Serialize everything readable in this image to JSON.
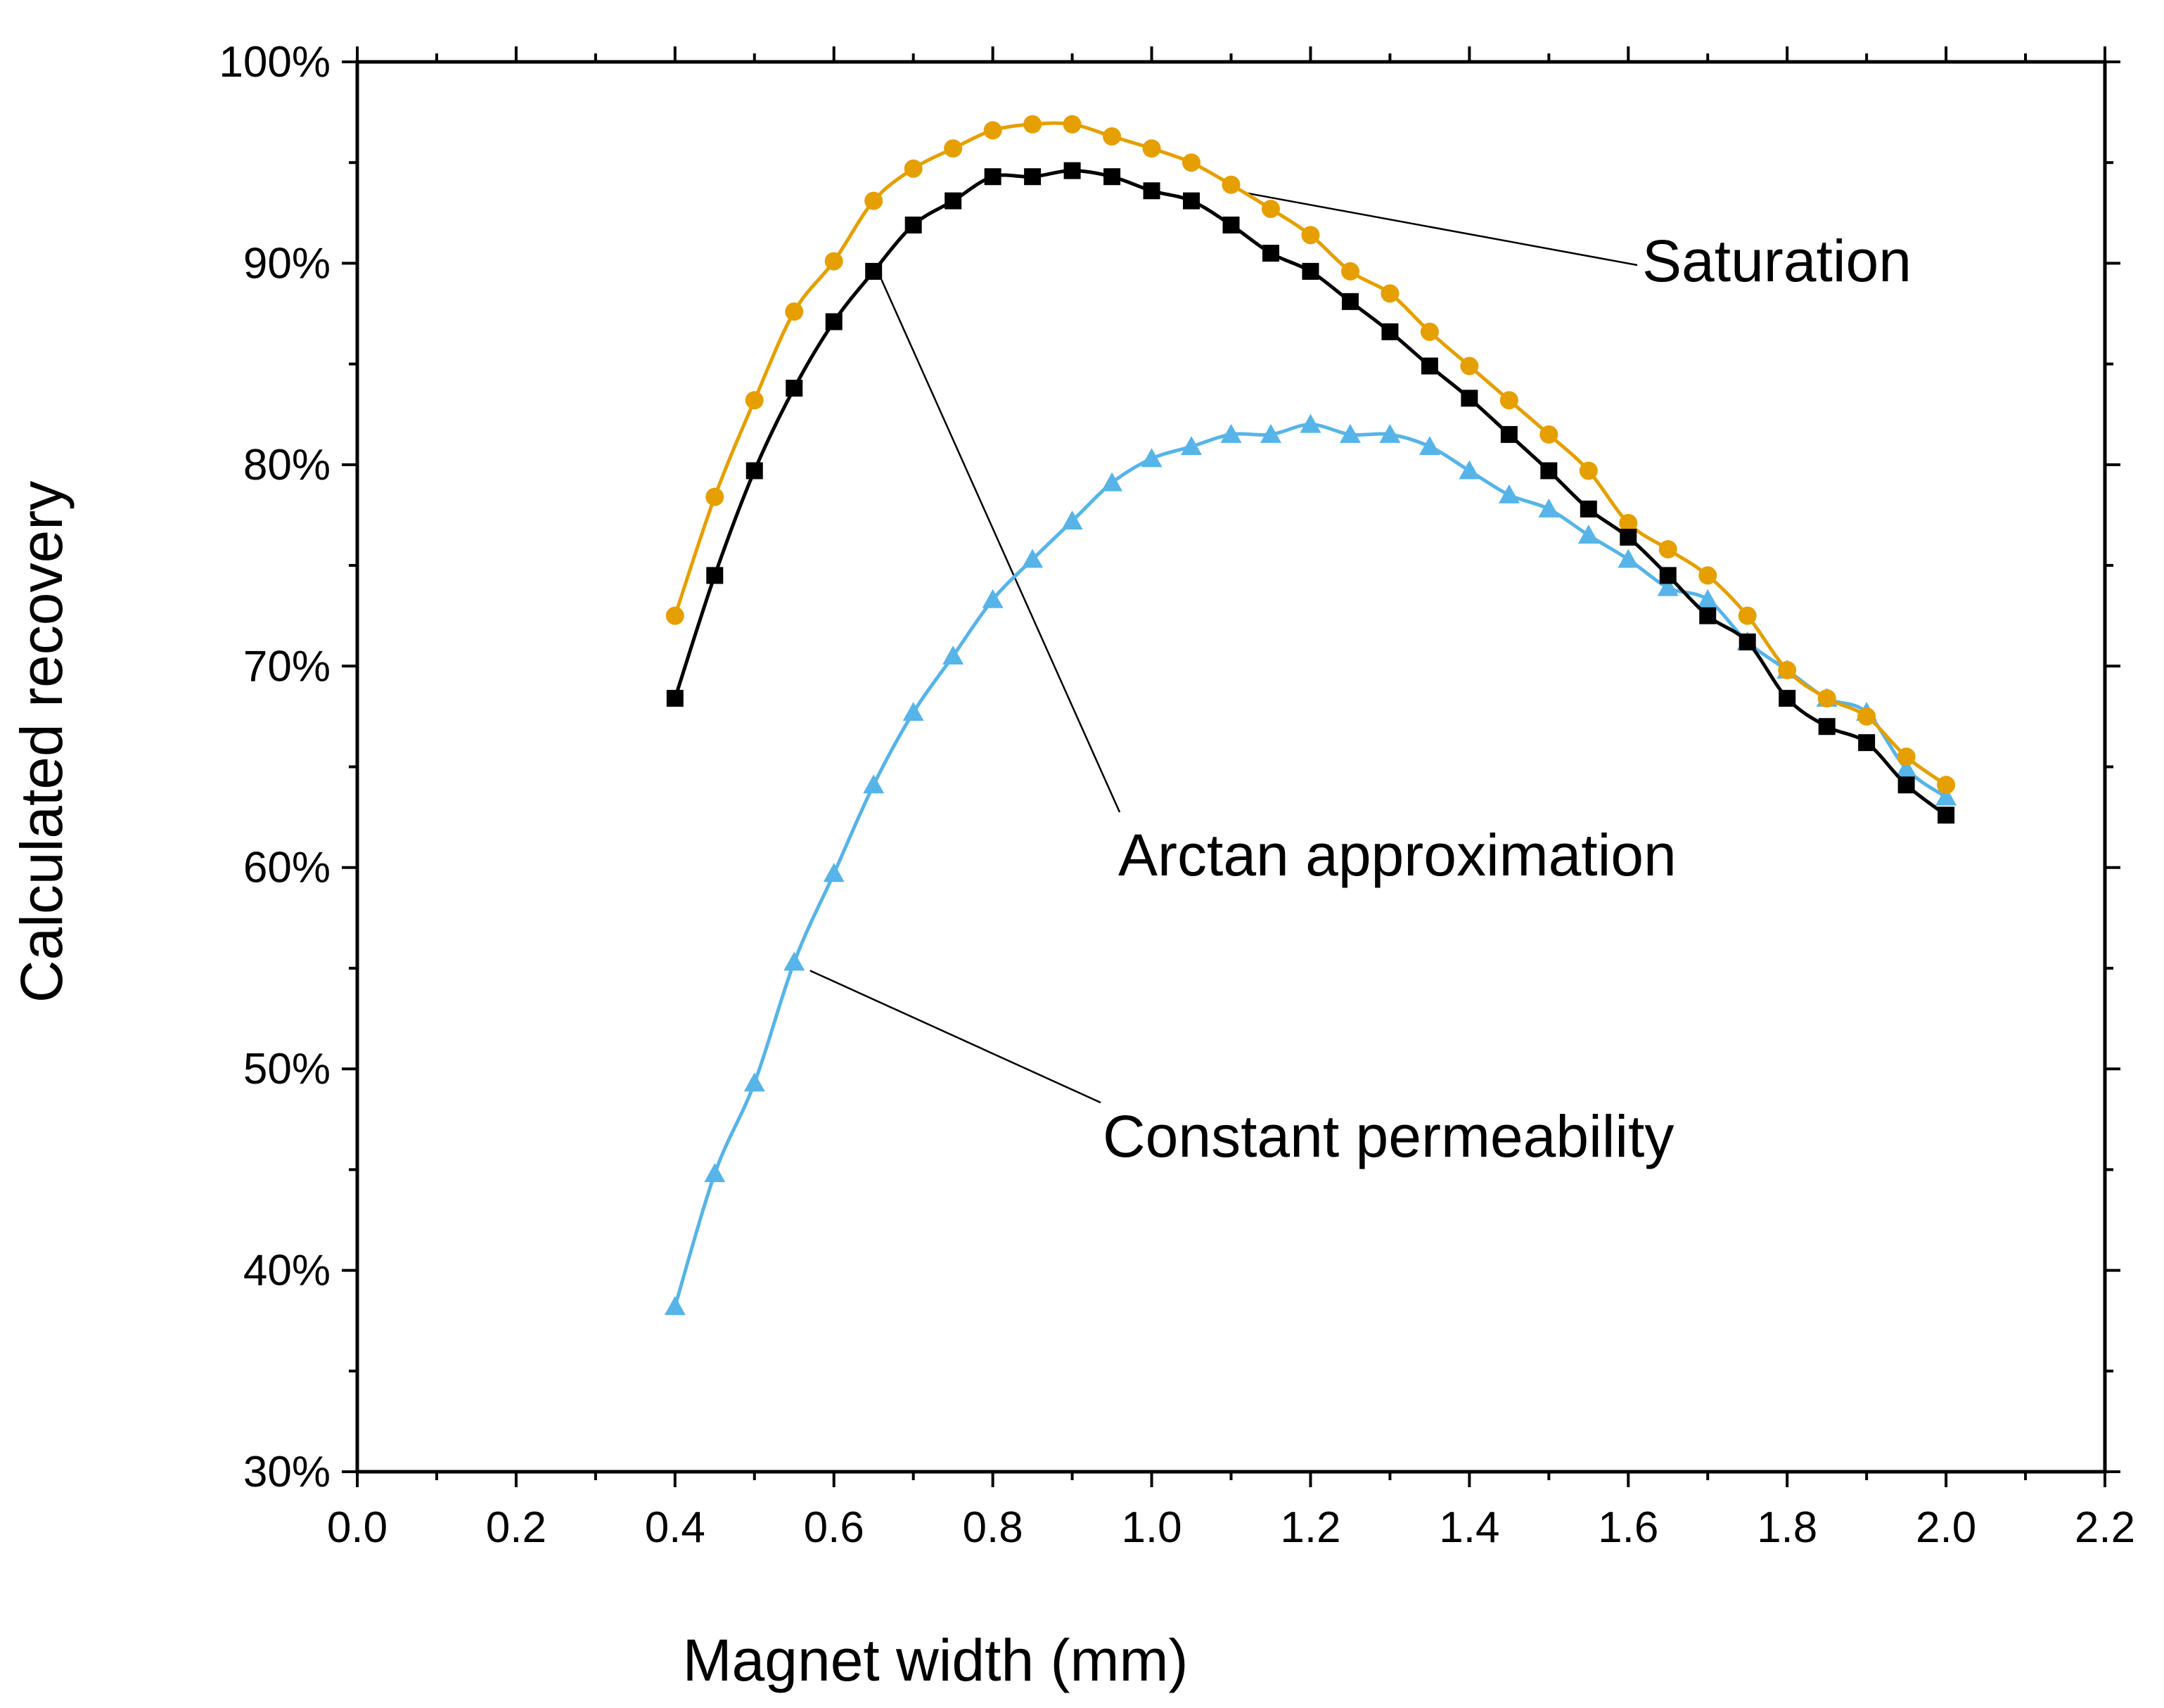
{
  "chart_data": {
    "type": "line",
    "title": "",
    "xlabel": "Magnet width (mm)",
    "ylabel": "Calculated recovery",
    "xlim": [
      0.0,
      2.2
    ],
    "ylim": [
      0.3,
      1.0
    ],
    "xticks": [
      0.0,
      0.2,
      0.4,
      0.6,
      0.8,
      1.0,
      1.2,
      1.4,
      1.6,
      1.8,
      2.0,
      2.2
    ],
    "xtick_labels": [
      "0.0",
      "0.2",
      "0.4",
      "0.6",
      "0.8",
      "1.0",
      "1.2",
      "1.4",
      "1.6",
      "1.8",
      "2.0",
      "2.2"
    ],
    "yticks": [
      0.3,
      0.4,
      0.5,
      0.6,
      0.7,
      0.8,
      0.9,
      1.0
    ],
    "ytick_labels": [
      "30%",
      "40%",
      "50%",
      "60%",
      "70%",
      "80%",
      "90%",
      "100%"
    ],
    "grid": false,
    "legend": "none (inline annotations)",
    "x": [
      0.4,
      0.45,
      0.5,
      0.55,
      0.6,
      0.65,
      0.7,
      0.75,
      0.8,
      0.85,
      0.9,
      0.95,
      1.0,
      1.05,
      1.1,
      1.15,
      1.2,
      1.25,
      1.3,
      1.35,
      1.4,
      1.45,
      1.5,
      1.55,
      1.6,
      1.65,
      1.7,
      1.75,
      1.8,
      1.85,
      1.9,
      1.95,
      2.0
    ],
    "series": [
      {
        "name": "Saturation",
        "color": "#E69F00",
        "marker": "circle",
        "values": [
          0.725,
          0.784,
          0.832,
          0.876,
          0.901,
          0.931,
          0.947,
          0.957,
          0.966,
          0.969,
          0.969,
          0.963,
          0.957,
          0.95,
          0.939,
          0.927,
          0.914,
          0.896,
          0.885,
          0.866,
          0.849,
          0.832,
          0.815,
          0.797,
          0.771,
          0.758,
          0.745,
          0.725,
          0.698,
          0.684,
          0.675,
          0.655,
          0.641
        ]
      },
      {
        "name": "Arctan approximation",
        "color": "#000000",
        "marker": "square",
        "values": [
          0.684,
          0.745,
          0.797,
          0.838,
          0.871,
          0.896,
          0.919,
          0.931,
          0.943,
          0.943,
          0.946,
          0.943,
          0.936,
          0.931,
          0.919,
          0.905,
          0.896,
          0.881,
          0.866,
          0.849,
          0.833,
          0.815,
          0.797,
          0.778,
          0.764,
          0.745,
          0.725,
          0.712,
          0.684,
          0.67,
          0.662,
          0.641,
          0.626
        ]
      },
      {
        "name": "Constant permeability",
        "color": "#56B4E9",
        "marker": "triangle",
        "values": [
          0.382,
          0.448,
          0.493,
          0.553,
          0.597,
          0.641,
          0.677,
          0.705,
          0.733,
          0.753,
          0.772,
          0.791,
          0.803,
          0.809,
          0.815,
          0.815,
          0.82,
          0.815,
          0.815,
          0.809,
          0.797,
          0.785,
          0.778,
          0.765,
          0.753,
          0.739,
          0.733,
          0.712,
          0.698,
          0.684,
          0.677,
          0.649,
          0.635
        ]
      }
    ],
    "annotations": [
      {
        "text": "Saturation",
        "series": "Saturation",
        "point_x": 1.12
      },
      {
        "text": "Arctan approximation",
        "series": "Arctan approximation",
        "point_x": 0.66
      },
      {
        "text": "Constant permeability",
        "series": "Constant permeability",
        "point_x": 0.57
      }
    ]
  }
}
